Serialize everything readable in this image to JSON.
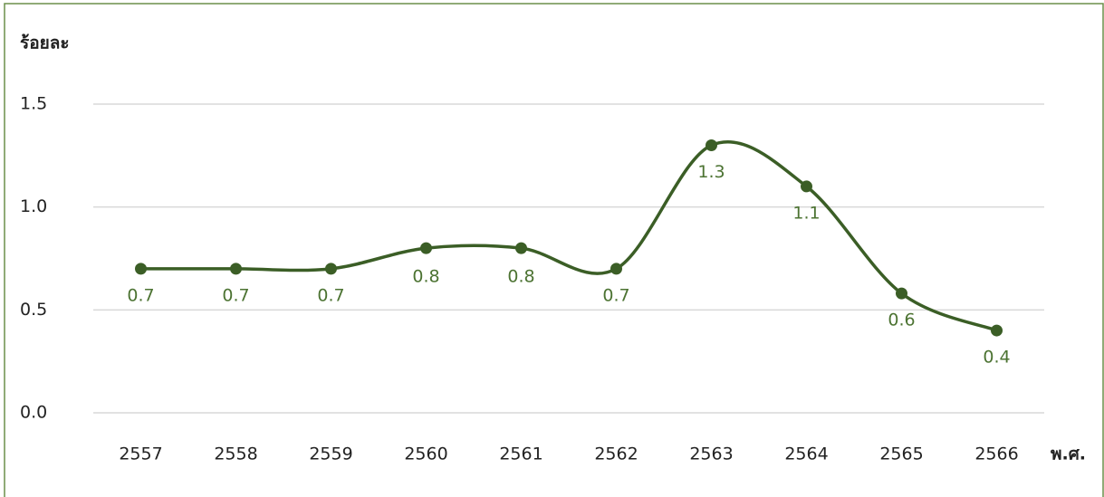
{
  "chart_data": {
    "type": "line",
    "y_label": "ร้อยละ",
    "x_label": "พ.ศ.",
    "categories": [
      "2557",
      "2558",
      "2559",
      "2560",
      "2561",
      "2562",
      "2563",
      "2564",
      "2565",
      "2566"
    ],
    "series": [
      {
        "color": "#3b5e26",
        "values": [
          0.7,
          0.7,
          0.7,
          0.8,
          0.8,
          0.7,
          1.3,
          1.1,
          0.58,
          0.4
        ],
        "value_labels": [
          "0.7",
          "0.7",
          "0.7",
          "0.8",
          "0.8",
          "0.7",
          "1.3",
          "1.1",
          "0.6",
          "0.4"
        ]
      }
    ],
    "ylim": [
      0,
      1.5
    ],
    "yticks": [
      {
        "value": 0,
        "label": "0.0"
      },
      0.5,
      {
        "value": 1,
        "label": "1.0"
      },
      1.5
    ],
    "grid": true,
    "smooth": true
  }
}
